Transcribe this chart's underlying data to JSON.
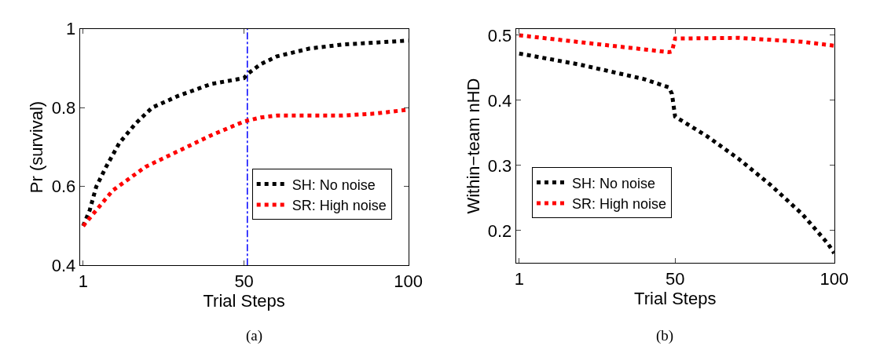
{
  "chart_data": [
    {
      "type": "line",
      "xlabel": "Trial Steps",
      "ylabel": "Pr (survival)",
      "annotations": [
        "(a)"
      ],
      "xlim": [
        0,
        100
      ],
      "ylim": [
        0.4,
        1
      ],
      "xticks": [
        1,
        50,
        100
      ],
      "yticks": [
        0.4,
        0.6,
        0.8,
        1
      ],
      "legend": "right",
      "grid": false,
      "line_style": "dotted",
      "marker": "none",
      "ref_lines": [
        {
          "axis": "x",
          "value": 51,
          "color": "#0000ff",
          "line_style": "dashdot"
        }
      ],
      "series": [
        {
          "name": "SH: No noise",
          "color": "#000000",
          "x": [
            1,
            3,
            5,
            8,
            12,
            17,
            22,
            30,
            40,
            50,
            51,
            55,
            60,
            70,
            80,
            90,
            100
          ],
          "values": [
            0.5,
            0.54,
            0.6,
            0.65,
            0.71,
            0.76,
            0.8,
            0.83,
            0.86,
            0.875,
            0.885,
            0.91,
            0.93,
            0.95,
            0.96,
            0.965,
            0.97
          ]
        },
        {
          "name": "SR: High noise",
          "color": "#ff0000",
          "x": [
            1,
            5,
            10,
            20,
            30,
            40,
            50,
            55,
            60,
            70,
            80,
            90,
            100
          ],
          "values": [
            0.5,
            0.54,
            0.59,
            0.65,
            0.69,
            0.73,
            0.765,
            0.775,
            0.78,
            0.78,
            0.78,
            0.785,
            0.795
          ]
        }
      ]
    },
    {
      "type": "line",
      "xlabel": "Trial Steps",
      "ylabel": "Within−team nHD",
      "annotations": [
        "(b)"
      ],
      "xlim": [
        0,
        100
      ],
      "ylim": [
        0.15,
        0.51
      ],
      "xticks": [
        1,
        50,
        100
      ],
      "yticks": [
        0.2,
        0.3,
        0.4,
        0.5
      ],
      "legend": "bottom left",
      "grid": false,
      "line_style": "dotted",
      "marker": "none",
      "series": [
        {
          "name": "SH: No noise",
          "color": "#000000",
          "x": [
            1,
            20,
            40,
            48,
            49,
            50,
            60,
            70,
            80,
            90,
            98,
            100
          ],
          "values": [
            0.472,
            0.455,
            0.433,
            0.42,
            0.41,
            0.375,
            0.345,
            0.31,
            0.27,
            0.225,
            0.18,
            0.165
          ]
        },
        {
          "name": "SR: High noise",
          "color": "#ff0000",
          "x": [
            1,
            48,
            49,
            50,
            70,
            90,
            100
          ],
          "values": [
            0.5,
            0.474,
            0.475,
            0.495,
            0.496,
            0.49,
            0.484
          ]
        }
      ]
    }
  ]
}
